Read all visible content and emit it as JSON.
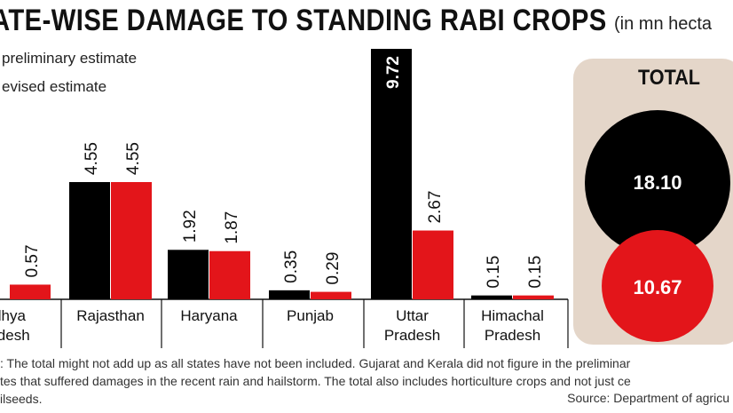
{
  "title": "ATE-WISE DAMAGE TO STANDING RABI CROPS",
  "unit": "(in mn hecta",
  "legend": {
    "preliminary": "preliminary estimate",
    "revised": "evised estimate"
  },
  "colors": {
    "preliminary": "#000000",
    "revised": "#e3151a",
    "panel": "#e4d6c9"
  },
  "chart_data": {
    "type": "bar",
    "categories": [
      "dhya|adesh",
      "Rajasthan",
      "Haryana",
      "Punjab",
      "Uttar|Pradesh",
      "Himachal|Pradesh"
    ],
    "series": [
      {
        "name": "preliminary estimate",
        "values": [
          null,
          4.55,
          1.92,
          0.35,
          9.72,
          0.15
        ],
        "labels": [
          "",
          "4.55",
          "1.92",
          "0.35",
          "9.72",
          "0.15"
        ]
      },
      {
        "name": "evised estimate",
        "values": [
          0.57,
          4.55,
          1.87,
          0.29,
          2.67,
          0.15
        ],
        "labels": [
          "0.57",
          "4.55",
          "1.87",
          "0.29",
          "2.67",
          "0.15"
        ]
      }
    ],
    "ylim": [
      0,
      9.72
    ],
    "total": {
      "label": "TOTAL",
      "preliminary": 18.1,
      "preliminary_label": "18.10",
      "revised": 10.67,
      "revised_label": "10.67"
    }
  },
  "notes": [
    ": The total might not add up as all states have not been included. Gujarat and Kerala did not figure in the preliminar",
    "tes that suffered damages in the recent rain and hailstorm. The total also includes horticulture crops and not just ce",
    "ilseeds."
  ],
  "source": "Source: Department of agricu"
}
